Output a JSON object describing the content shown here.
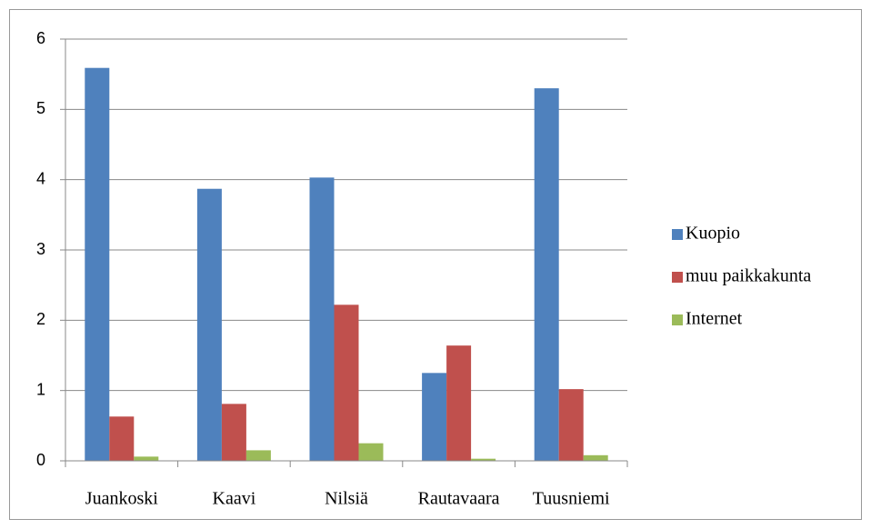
{
  "chart_data": {
    "type": "bar",
    "categories": [
      "Juankoski",
      "Kaavi",
      "Nilsiä",
      "Rautavaara",
      "Tuusniemi"
    ],
    "series": [
      {
        "name": "Kuopio",
        "color": "#4f81bd",
        "values": [
          5.59,
          3.87,
          4.03,
          1.25,
          5.3
        ]
      },
      {
        "name": "muu paikkakunta",
        "color": "#c0504d",
        "values": [
          0.63,
          0.81,
          2.22,
          1.64,
          1.02
        ]
      },
      {
        "name": "Internet",
        "color": "#9bbb59",
        "values": [
          0.06,
          0.15,
          0.25,
          0.03,
          0.08
        ]
      }
    ],
    "ylim": [
      0,
      6
    ],
    "yticks": [
      0,
      1,
      2,
      3,
      4,
      5,
      6
    ],
    "grid": true,
    "legend": "right"
  }
}
